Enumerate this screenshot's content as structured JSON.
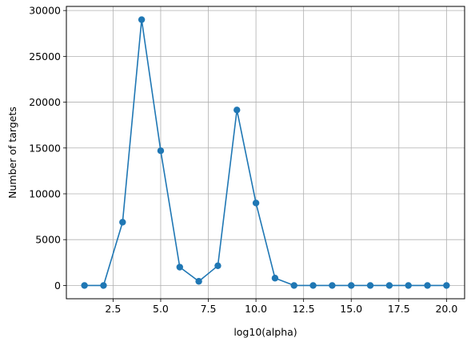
{
  "chart_data": {
    "type": "line",
    "xlabel": "log10(alpha)",
    "ylabel": "Number of targets",
    "xlim": [
      0.05,
      20.95
    ],
    "ylim": [
      -1450,
      30450
    ],
    "x_ticks": [
      2.5,
      5.0,
      7.5,
      10.0,
      12.5,
      15.0,
      17.5,
      20.0
    ],
    "x_tick_labels": [
      "2.5",
      "5.0",
      "7.5",
      "10.0",
      "12.5",
      "15.0",
      "17.5",
      "20.0"
    ],
    "y_ticks": [
      0,
      5000,
      10000,
      15000,
      20000,
      25000,
      30000
    ],
    "y_tick_labels": [
      "0",
      "5000",
      "10000",
      "15000",
      "20000",
      "25000",
      "30000"
    ],
    "grid": true,
    "series": [
      {
        "color": "#1f77b4",
        "marker": "circle",
        "x": [
          1,
          2,
          3,
          4,
          5,
          6,
          7,
          8,
          9,
          10,
          11,
          12,
          13,
          14,
          15,
          16,
          17,
          18,
          19,
          20
        ],
        "y": [
          0,
          0,
          6900,
          29000,
          14700,
          2000,
          450,
          2150,
          19150,
          9000,
          800,
          0,
          0,
          0,
          0,
          0,
          0,
          0,
          0,
          0
        ]
      }
    ]
  }
}
